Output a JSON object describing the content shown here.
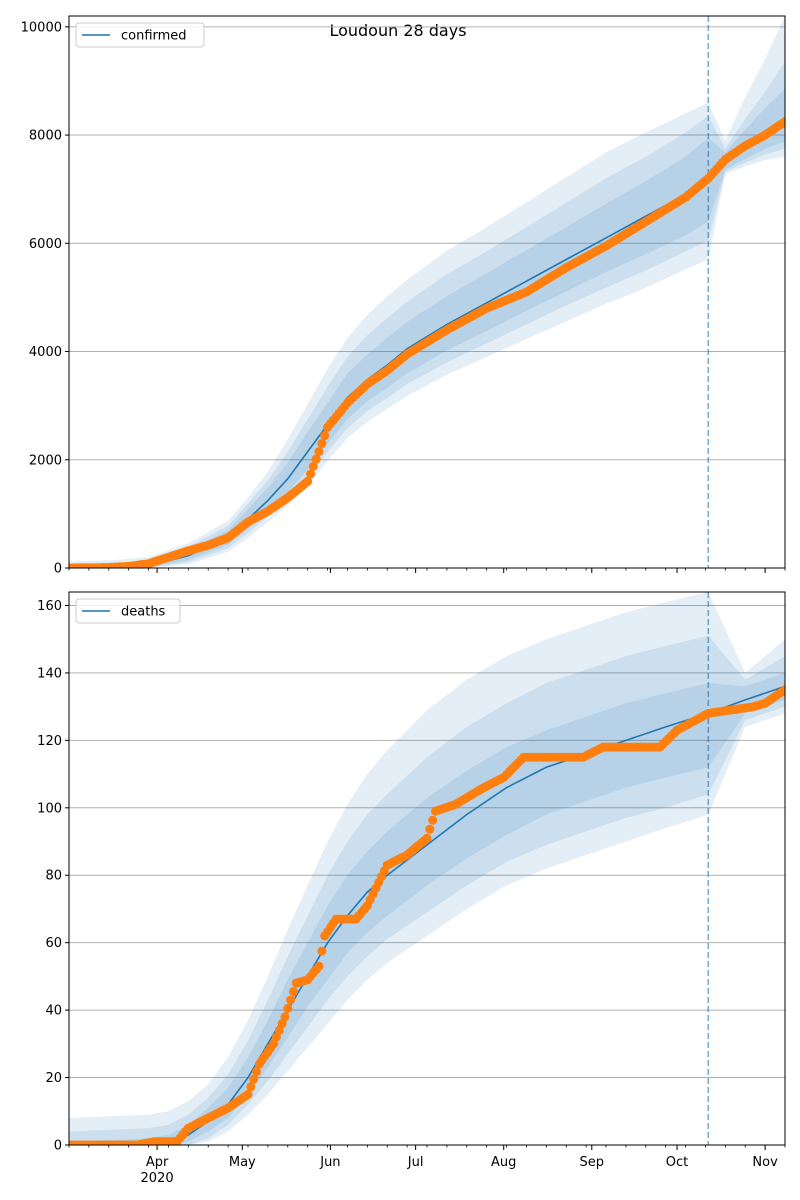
{
  "figure": {
    "title": "Loudoun 28 days"
  },
  "colors": {
    "model_line": "#1f77b4",
    "observed_points": "#ff7f0e",
    "band": "#1f77b4",
    "grid": "#b0b0b0",
    "forecast_divider": "#1f77b4"
  },
  "chart_data": [
    {
      "type": "line",
      "panel": "confirmed",
      "legend": [
        "confirmed"
      ],
      "legend_position": "top-left",
      "grid": "y-major",
      "x_domain": [
        "2020-03-01",
        "2020-11-08"
      ],
      "forecast_start": "2020-10-12",
      "ylim": [
        0,
        10200
      ],
      "yticks": [
        0,
        2000,
        4000,
        6000,
        8000,
        10000
      ],
      "series": [
        {
          "name": "confirmed",
          "kind": "model-median",
          "x": [
            "2020-03-01",
            "2020-03-15",
            "2020-03-29",
            "2020-04-12",
            "2020-04-26",
            "2020-05-03",
            "2020-05-10",
            "2020-05-17",
            "2020-05-24",
            "2020-05-31",
            "2020-06-07",
            "2020-06-14",
            "2020-06-21",
            "2020-06-28",
            "2020-07-12",
            "2020-07-26",
            "2020-08-09",
            "2020-08-23",
            "2020-09-06",
            "2020-09-20",
            "2020-10-04",
            "2020-10-12",
            "2020-10-18",
            "2020-10-25",
            "2020-11-01",
            "2020-11-08"
          ],
          "y": [
            0,
            10,
            40,
            230,
            560,
            900,
            1250,
            1650,
            2150,
            2650,
            3150,
            3480,
            3750,
            4050,
            4500,
            4900,
            5300,
            5700,
            6100,
            6500,
            6900,
            7200,
            7500,
            7800,
            8050,
            8300
          ],
          "intervals": [
            {
              "lower": [
                0,
                0,
                10,
                150,
                430,
                730,
                1050,
                1400,
                1820,
                2300,
                2750,
                3080,
                3330,
                3600,
                4020,
                4380,
                4750,
                5110,
                5470,
                5800,
                6150,
                6400,
                7360,
                7560,
                7740,
                7890
              ],
              "upper": [
                20,
                30,
                80,
                330,
                700,
                1090,
                1480,
                1950,
                2520,
                3050,
                3600,
                3950,
                4250,
                4550,
                5020,
                5450,
                5870,
                6300,
                6730,
                7150,
                7600,
                7950,
                7680,
                8100,
                8500,
                8850
              ]
            },
            {
              "lower": [
                0,
                0,
                0,
                110,
                370,
                650,
                950,
                1280,
                1680,
                2150,
                2580,
                2900,
                3140,
                3400,
                3800,
                4150,
                4500,
                4850,
                5180,
                5500,
                5850,
                6050,
                7320,
                7490,
                7640,
                7750
              ],
              "upper": [
                60,
                80,
                130,
                390,
                780,
                1190,
                1620,
                2150,
                2750,
                3350,
                3900,
                4300,
                4620,
                4920,
                5430,
                5850,
                6300,
                6750,
                7200,
                7600,
                8050,
                8350,
                7750,
                8300,
                8800,
                9350
              ]
            },
            {
              "lower": [
                0,
                0,
                0,
                70,
                300,
                560,
                850,
                1150,
                1520,
                1980,
                2400,
                2700,
                2940,
                3180,
                3570,
                3900,
                4230,
                4560,
                4880,
                5180,
                5520,
                5700,
                7280,
                7420,
                7540,
                7600
              ],
              "upper": [
                120,
                140,
                200,
                460,
                870,
                1300,
                1780,
                2380,
                3030,
                3680,
                4250,
                4680,
                5020,
                5330,
                5860,
                6300,
                6760,
                7220,
                7680,
                8050,
                8400,
                8600,
                7900,
                8700,
                9400,
                10200
              ]
            }
          ]
        },
        {
          "name": "",
          "kind": "observed",
          "x": [
            "2020-03-01",
            "2020-03-15",
            "2020-03-22",
            "2020-03-29",
            "2020-04-05",
            "2020-04-12",
            "2020-04-19",
            "2020-04-26",
            "2020-05-03",
            "2020-05-10",
            "2020-05-17",
            "2020-05-24",
            "2020-05-28",
            "2020-05-31",
            "2020-06-07",
            "2020-06-14",
            "2020-06-21",
            "2020-06-28",
            "2020-07-12",
            "2020-07-26",
            "2020-08-09",
            "2020-08-23",
            "2020-09-06",
            "2020-09-20",
            "2020-10-04",
            "2020-10-12",
            "2020-10-18",
            "2020-10-25",
            "2020-11-01",
            "2020-11-08"
          ],
          "y": [
            0,
            10,
            30,
            80,
            200,
            320,
            420,
            560,
            850,
            1050,
            1300,
            1600,
            2150,
            2600,
            3050,
            3400,
            3650,
            3950,
            4400,
            4800,
            5100,
            5550,
            5950,
            6400,
            6850,
            7200,
            7550,
            7800,
            8000,
            8250
          ]
        }
      ]
    },
    {
      "type": "line",
      "panel": "deaths",
      "legend": [
        "deaths"
      ],
      "legend_position": "top-left",
      "grid": "y-major",
      "x_domain": [
        "2020-03-01",
        "2020-11-08"
      ],
      "forecast_start": "2020-10-12",
      "ylim": [
        0,
        164
      ],
      "yticks": [
        0,
        20,
        40,
        60,
        80,
        100,
        120,
        140,
        160
      ],
      "xticks": [
        "Apr",
        "May",
        "Jun",
        "Jul",
        "Aug",
        "Sep",
        "Oct",
        "Nov"
      ],
      "xtick_year": "2020",
      "series": [
        {
          "name": "deaths",
          "kind": "model-median",
          "x": [
            "2020-03-01",
            "2020-03-29",
            "2020-04-05",
            "2020-04-12",
            "2020-04-19",
            "2020-04-26",
            "2020-05-03",
            "2020-05-10",
            "2020-05-17",
            "2020-05-24",
            "2020-05-31",
            "2020-06-07",
            "2020-06-14",
            "2020-06-21",
            "2020-07-05",
            "2020-07-19",
            "2020-08-02",
            "2020-08-16",
            "2020-08-30",
            "2020-09-13",
            "2020-09-27",
            "2020-10-12",
            "2020-10-25",
            "2020-11-08"
          ],
          "y": [
            0,
            0,
            1,
            3,
            7,
            12,
            20,
            30,
            40,
            50,
            60,
            68,
            75,
            80,
            89,
            98,
            106,
            112,
            116,
            120,
            124,
            128,
            132,
            136
          ],
          "intervals": [
            {
              "lower": [
                0,
                0,
                0,
                1,
                4,
                8,
                15,
                23,
                32,
                41,
                49,
                57,
                63,
                68,
                77,
                85,
                92,
                98,
                102,
                106,
                109,
                112,
                128,
                132
              ],
              "upper": [
                1,
                2,
                3,
                6,
                11,
                17,
                26,
                37,
                49,
                60,
                71,
                80,
                87,
                93,
                103,
                111,
                118,
                123,
                127,
                131,
                134,
                137,
                136,
                140
              ]
            },
            {
              "lower": [
                0,
                0,
                0,
                0,
                2,
                6,
                12,
                19,
                27,
                35,
                43,
                50,
                56,
                61,
                69,
                77,
                84,
                89,
                93,
                97,
                100,
                104,
                126,
                130
              ],
              "upper": [
                4,
                5,
                6,
                9,
                14,
                21,
                31,
                43,
                56,
                68,
                80,
                90,
                98,
                104,
                115,
                124,
                131,
                137,
                141,
                145,
                148,
                151,
                138,
                145
              ]
            },
            {
              "lower": [
                0,
                0,
                0,
                0,
                1,
                4,
                9,
                15,
                22,
                29,
                36,
                43,
                49,
                54,
                62,
                70,
                77,
                82,
                86,
                90,
                94,
                98,
                124,
                128
              ],
              "upper": [
                8,
                9,
                10,
                13,
                18,
                26,
                37,
                50,
                64,
                77,
                90,
                101,
                110,
                117,
                129,
                138,
                145,
                150,
                154,
                158,
                161,
                164,
                140,
                150
              ]
            }
          ]
        },
        {
          "name": "",
          "kind": "observed",
          "x": [
            "2020-03-01",
            "2020-03-25",
            "2020-03-31",
            "2020-04-08",
            "2020-04-12",
            "2020-04-19",
            "2020-04-26",
            "2020-05-03",
            "2020-05-07",
            "2020-05-12",
            "2020-05-16",
            "2020-05-20",
            "2020-05-24",
            "2020-05-28",
            "2020-05-30",
            "2020-06-03",
            "2020-06-10",
            "2020-06-14",
            "2020-06-21",
            "2020-06-28",
            "2020-07-05",
            "2020-07-08",
            "2020-07-15",
            "2020-07-25",
            "2020-08-01",
            "2020-08-08",
            "2020-08-20",
            "2020-08-29",
            "2020-09-05",
            "2020-09-15",
            "2020-09-25",
            "2020-10-01",
            "2020-10-12",
            "2020-10-20",
            "2020-10-28",
            "2020-11-01",
            "2020-11-08"
          ],
          "y": [
            0,
            0,
            1,
            1,
            5,
            8,
            11,
            15,
            24,
            30,
            38,
            48,
            49,
            53,
            62,
            67,
            67,
            71,
            83,
            86,
            91,
            99,
            101,
            106,
            109,
            115,
            115,
            115,
            118,
            118,
            118,
            123,
            128,
            129,
            130,
            131,
            135
          ]
        }
      ]
    }
  ]
}
